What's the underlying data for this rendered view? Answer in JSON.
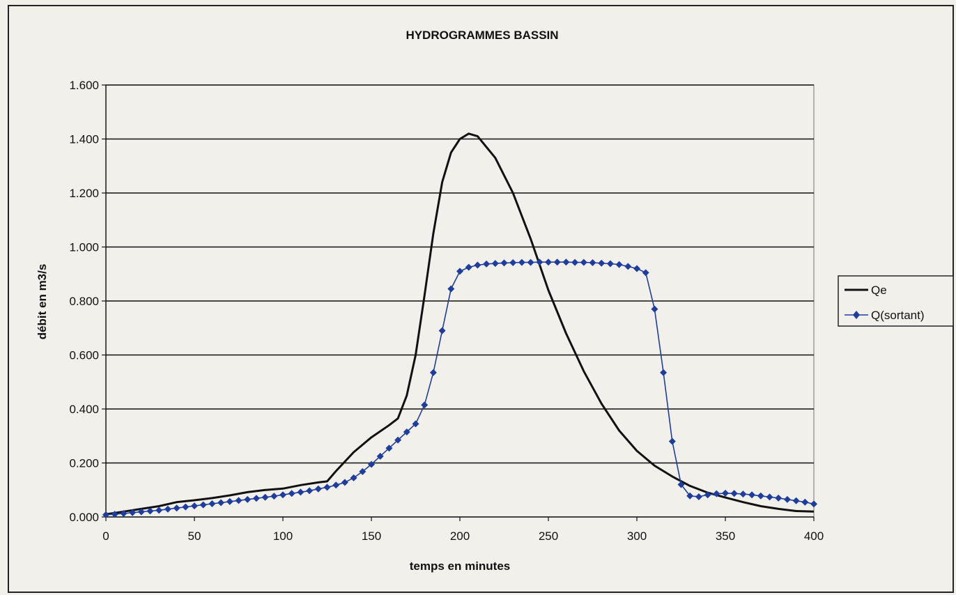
{
  "chart_data": {
    "type": "line",
    "title": "HYDROGRAMMES BASSIN",
    "xlabel": "temps en minutes",
    "ylabel": "débit en m3/s",
    "xlim": [
      0,
      400
    ],
    "ylim": [
      0,
      1.6
    ],
    "x_ticks": [
      0,
      50,
      100,
      150,
      200,
      250,
      300,
      350,
      400
    ],
    "x_tick_labels": [
      "0",
      "50",
      "100",
      "150",
      "200",
      "250",
      "300",
      "350",
      "400"
    ],
    "y_ticks": [
      0,
      0.2,
      0.4,
      0.6,
      0.8,
      1.0,
      1.2,
      1.4,
      1.6
    ],
    "y_tick_labels": [
      "0.000",
      "0.200",
      "0.400",
      "0.600",
      "0.800",
      "1.000",
      "1.200",
      "1.400",
      "1.600"
    ],
    "grid": "horizontal",
    "legend_position": "right",
    "series": [
      {
        "name": "Qe",
        "color": "#111111",
        "marker": "none",
        "x": [
          0,
          10,
          20,
          30,
          40,
          50,
          60,
          70,
          80,
          90,
          100,
          110,
          120,
          125,
          130,
          140,
          150,
          160,
          165,
          170,
          175,
          180,
          185,
          190,
          195,
          200,
          205,
          210,
          220,
          230,
          240,
          250,
          260,
          270,
          280,
          290,
          300,
          310,
          320,
          330,
          340,
          350,
          360,
          370,
          380,
          390,
          400
        ],
        "y": [
          0.01,
          0.02,
          0.03,
          0.04,
          0.055,
          0.062,
          0.07,
          0.08,
          0.092,
          0.1,
          0.105,
          0.118,
          0.128,
          0.132,
          0.17,
          0.24,
          0.295,
          0.34,
          0.365,
          0.45,
          0.6,
          0.82,
          1.05,
          1.24,
          1.35,
          1.4,
          1.42,
          1.41,
          1.33,
          1.2,
          1.03,
          0.84,
          0.68,
          0.54,
          0.42,
          0.32,
          0.245,
          0.19,
          0.15,
          0.115,
          0.09,
          0.072,
          0.055,
          0.04,
          0.03,
          0.022,
          0.02
        ]
      },
      {
        "name": "Q(sortant)",
        "color": "#1f3d9c",
        "marker": "diamond",
        "x": [
          0,
          5,
          10,
          15,
          20,
          25,
          30,
          35,
          40,
          45,
          50,
          55,
          60,
          65,
          70,
          75,
          80,
          85,
          90,
          95,
          100,
          105,
          110,
          115,
          120,
          125,
          130,
          135,
          140,
          145,
          150,
          155,
          160,
          165,
          170,
          175,
          180,
          185,
          190,
          195,
          200,
          205,
          210,
          215,
          220,
          225,
          230,
          235,
          240,
          245,
          250,
          255,
          260,
          265,
          270,
          275,
          280,
          285,
          290,
          295,
          300,
          305,
          310,
          315,
          320,
          325,
          330,
          335,
          340,
          345,
          350,
          355,
          360,
          365,
          370,
          375,
          380,
          385,
          390,
          395,
          400
        ],
        "y": [
          0.008,
          0.01,
          0.013,
          0.016,
          0.019,
          0.022,
          0.025,
          0.029,
          0.033,
          0.037,
          0.041,
          0.045,
          0.049,
          0.053,
          0.057,
          0.061,
          0.065,
          0.069,
          0.073,
          0.077,
          0.082,
          0.087,
          0.092,
          0.097,
          0.104,
          0.11,
          0.118,
          0.128,
          0.145,
          0.168,
          0.195,
          0.225,
          0.255,
          0.285,
          0.315,
          0.345,
          0.415,
          0.535,
          0.69,
          0.845,
          0.91,
          0.925,
          0.933,
          0.937,
          0.939,
          0.941,
          0.942,
          0.943,
          0.943,
          0.944,
          0.944,
          0.944,
          0.944,
          0.943,
          0.943,
          0.942,
          0.94,
          0.938,
          0.935,
          0.928,
          0.92,
          0.905,
          0.77,
          0.535,
          0.28,
          0.12,
          0.078,
          0.075,
          0.082,
          0.086,
          0.088,
          0.087,
          0.085,
          0.082,
          0.078,
          0.074,
          0.07,
          0.065,
          0.06,
          0.055,
          0.048
        ]
      }
    ]
  }
}
